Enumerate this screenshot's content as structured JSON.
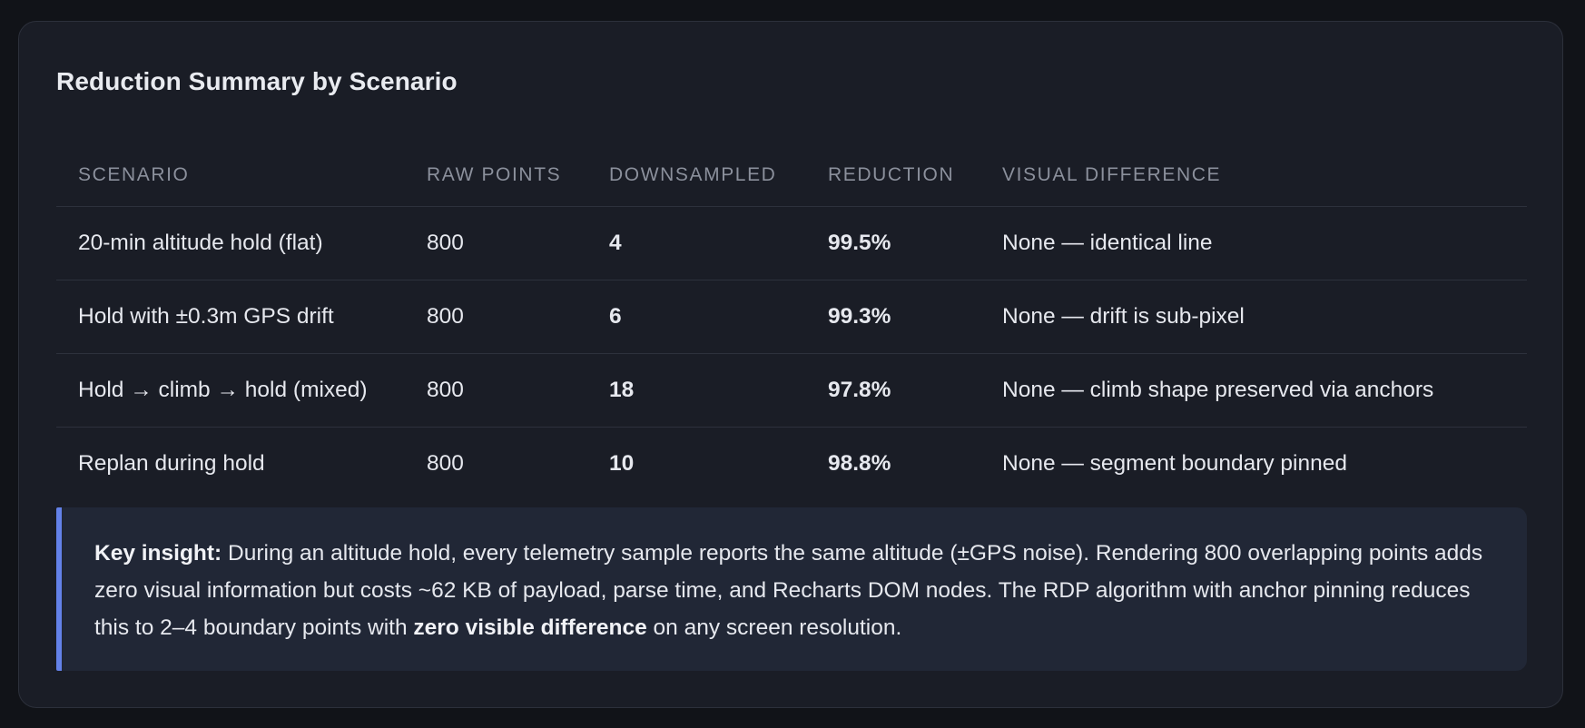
{
  "card": {
    "title": "Reduction Summary by Scenario"
  },
  "table": {
    "headers": {
      "scenario": "SCENARIO",
      "raw_points": "RAW POINTS",
      "downsampled": "DOWNSAMPLED",
      "reduction": "REDUCTION",
      "visual_difference": "VISUAL DIFFERENCE"
    },
    "rows": [
      {
        "scenario": "20-min altitude hold (flat)",
        "raw_points": "800",
        "downsampled": "4",
        "reduction": "99.5%",
        "visual_difference": "None — identical line"
      },
      {
        "scenario": "Hold with ±0.3m GPS drift",
        "raw_points": "800",
        "downsampled": "6",
        "reduction": "99.3%",
        "visual_difference": "None — drift is sub-pixel"
      },
      {
        "scenario": "Hold → climb → hold (mixed)",
        "raw_points": "800",
        "downsampled": "18",
        "reduction": "97.8%",
        "visual_difference": "None — climb shape preserved via anchors"
      },
      {
        "scenario": "Replan during hold",
        "raw_points": "800",
        "downsampled": "10",
        "reduction": "98.8%",
        "visual_difference": "None — segment boundary pinned"
      }
    ]
  },
  "callout": {
    "lead": "Key insight:",
    "body": " During an altitude hold, every telemetry sample reports the same altitude (±GPS noise). Rendering 800 overlapping points adds zero visual information but costs ~62 KB of payload, parse time, and Recharts DOM nodes. The RDP algorithm with anchor pinning reduces this to 2–4 boundary points with ",
    "emphasis": "zero visible difference",
    "tail": " on any screen resolution."
  },
  "colors": {
    "accent_green": "#4fc98a",
    "callout_border": "#6381e8",
    "card_background": "#1a1d26"
  }
}
